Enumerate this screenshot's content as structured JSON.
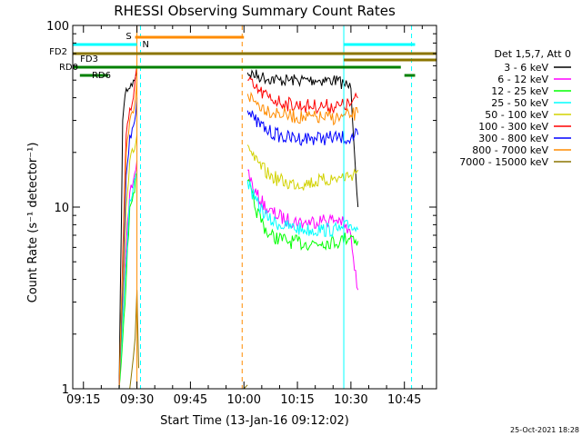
{
  "chart_data": {
    "type": "line",
    "title": "RHESSI Observing Summary Count Rates",
    "xlabel": "Start Time (13-Jan-16 09:12:02)",
    "ylabel": "Count Rate (s⁻¹ detector⁻¹)",
    "y_scale": "log",
    "ylim": [
      1,
      100
    ],
    "xlim": [
      "09:12",
      "10:54"
    ],
    "x_ticks": [
      "09:15",
      "09:30",
      "09:45",
      "10:00",
      "10:15",
      "10:30",
      "10:45"
    ],
    "y_ticks": [
      "1",
      "10",
      "100"
    ],
    "timestamp": "25-Oct-2021 18:28",
    "legend": {
      "position": "right",
      "header": "Det 1,5,7, Att 0",
      "entries": [
        {
          "label": "3 - 6 keV",
          "color": "#000000"
        },
        {
          "label": "6 - 12 keV",
          "color": "#ff00ff"
        },
        {
          "label": "12 - 25 keV",
          "color": "#00ff00"
        },
        {
          "label": "25 - 50 keV",
          "color": "#00ffff"
        },
        {
          "label": "50 - 100 keV",
          "color": "#d2d200"
        },
        {
          "label": "100 - 300 keV",
          "color": "#ff0000"
        },
        {
          "label": "300 - 800 keV",
          "color": "#0000ff"
        },
        {
          "label": "800 - 7000 keV",
          "color": "#ff8c00"
        },
        {
          "label": "7000 - 15000 keV",
          "color": "#8b7500"
        }
      ]
    },
    "series": [
      {
        "name": "3 - 6 keV",
        "color": "#000000",
        "x": [
          "09:25",
          "09:26",
          "09:27",
          "09:28",
          "09:29",
          "09:30",
          "10:01",
          "10:05",
          "10:10",
          "10:15",
          "10:20",
          "10:25",
          "10:28",
          "10:30",
          "10:32"
        ],
        "y": [
          1,
          30,
          45,
          45,
          50,
          55,
          55,
          52,
          50,
          50,
          50,
          50,
          48,
          45,
          10
        ]
      },
      {
        "name": "6 - 12 keV",
        "color": "#ff00ff",
        "x": [
          "09:25",
          "09:27",
          "09:28",
          "09:29",
          "09:30",
          "10:01",
          "10:03",
          "10:07",
          "10:12",
          "10:17",
          "10:22",
          "10:27",
          "10:30",
          "10:31",
          "10:32"
        ],
        "y": [
          1,
          6,
          12,
          14,
          18,
          16,
          12,
          9.5,
          8.5,
          8.2,
          8.5,
          8.5,
          7,
          4.5,
          3.5
        ]
      },
      {
        "name": "12 - 25 keV",
        "color": "#00ff00",
        "x": [
          "09:25",
          "09:27",
          "09:28",
          "09:29",
          "09:30",
          "10:01",
          "10:03",
          "10:07",
          "10:12",
          "10:17",
          "10:22",
          "10:27",
          "10:30",
          "10:32"
        ],
        "y": [
          1,
          4,
          10,
          12,
          15,
          14,
          10,
          7,
          6.5,
          6.3,
          6.4,
          6.5,
          7,
          6.5
        ]
      },
      {
        "name": "25 - 50 keV",
        "color": "#00ffff",
        "x": [
          "09:25",
          "09:27",
          "09:28",
          "09:29",
          "09:30",
          "10:01",
          "10:03",
          "10:07",
          "10:12",
          "10:17",
          "10:22",
          "10:27",
          "10:30",
          "10:32"
        ],
        "y": [
          1,
          5,
          11,
          13,
          16,
          14,
          11,
          8.5,
          7.8,
          7.5,
          7.5,
          7.5,
          8,
          7.5
        ]
      },
      {
        "name": "50 - 100 keV",
        "color": "#d2d200",
        "x": [
          "09:25",
          "09:27",
          "09:28",
          "09:29",
          "09:30",
          "10:01",
          "10:03",
          "10:07",
          "10:12",
          "10:17",
          "10:22",
          "10:27",
          "10:30",
          "10:32"
        ],
        "y": [
          1,
          10,
          18,
          20,
          25,
          22,
          18,
          15,
          13.5,
          13.5,
          14,
          14.5,
          15,
          16
        ]
      },
      {
        "name": "100 - 300 keV",
        "color": "#ff0000",
        "x": [
          "09:25",
          "09:27",
          "09:28",
          "09:29",
          "09:30",
          "10:01",
          "10:03",
          "10:07",
          "10:12",
          "10:17",
          "10:22",
          "10:27",
          "10:30",
          "10:32"
        ],
        "y": [
          1,
          25,
          35,
          40,
          60,
          50,
          45,
          40,
          37,
          36,
          36,
          36,
          37,
          40
        ]
      },
      {
        "name": "300 - 800 keV",
        "color": "#0000ff",
        "x": [
          "09:25",
          "09:27",
          "09:28",
          "09:29",
          "09:30",
          "10:01",
          "10:03",
          "10:07",
          "10:12",
          "10:17",
          "10:22",
          "10:27",
          "10:30",
          "10:32"
        ],
        "y": [
          1,
          15,
          25,
          28,
          40,
          34,
          30,
          26,
          24,
          24,
          24,
          24,
          24,
          25
        ]
      },
      {
        "name": "800 - 7000 keV",
        "color": "#ff8c00",
        "x": [
          "09:25",
          "09:27",
          "09:28",
          "09:29",
          "09:30",
          "10:01",
          "10:03",
          "10:07",
          "10:12",
          "10:17",
          "10:22",
          "10:27",
          "10:30",
          "10:32"
        ],
        "y": [
          1,
          20,
          30,
          33,
          50,
          42,
          38,
          34,
          32,
          31,
          31,
          31,
          32,
          33
        ]
      },
      {
        "name": "7000 - 15000 keV",
        "color": "#8b7500",
        "x": [
          "09:28",
          "09:29",
          "09:29.5",
          "09:30",
          "09:30.5",
          "10:00",
          "10:01"
        ],
        "y": [
          1,
          1.5,
          1.9,
          3.5,
          1.3,
          1,
          1.05
        ]
      }
    ],
    "flag_bars": [
      {
        "label": "S",
        "color": "#ff8c00",
        "segments": [
          [
            "09:29.5",
            "10:00"
          ]
        ]
      },
      {
        "label": "N",
        "color": "#00ffff",
        "segments": [
          [
            "09:12",
            "09:30"
          ],
          [
            "10:28",
            "10:48"
          ]
        ]
      },
      {
        "label": "FD2",
        "color": "#8b7500",
        "segments": [
          [
            "09:12",
            "10:28"
          ],
          [
            "10:28",
            "10:54"
          ]
        ]
      },
      {
        "label": "FD3",
        "color": "#8b7500",
        "segments": [
          [
            "10:28",
            "10:54"
          ]
        ]
      },
      {
        "label": "RD0",
        "color": "#008000",
        "segments": [
          [
            "09:12",
            "10:44"
          ]
        ]
      },
      {
        "label": "RD6",
        "color": "#008000",
        "segments": [
          [
            "09:14",
            "09:22"
          ],
          [
            "10:45",
            "10:48"
          ]
        ]
      }
    ],
    "vertical_markers": [
      {
        "x": "09:12",
        "color": "#00ffff",
        "style": "solid"
      },
      {
        "x": "09:30",
        "color": "#ff8c00",
        "style": "solid"
      },
      {
        "x": "09:31",
        "color": "#00ffff",
        "style": "dashed"
      },
      {
        "x": "09:59.5",
        "color": "#ff8c00",
        "style": "dashed"
      },
      {
        "x": "10:28",
        "color": "#00ffff",
        "style": "solid"
      },
      {
        "x": "10:47",
        "color": "#00ffff",
        "style": "dashed"
      }
    ],
    "grid": false
  }
}
